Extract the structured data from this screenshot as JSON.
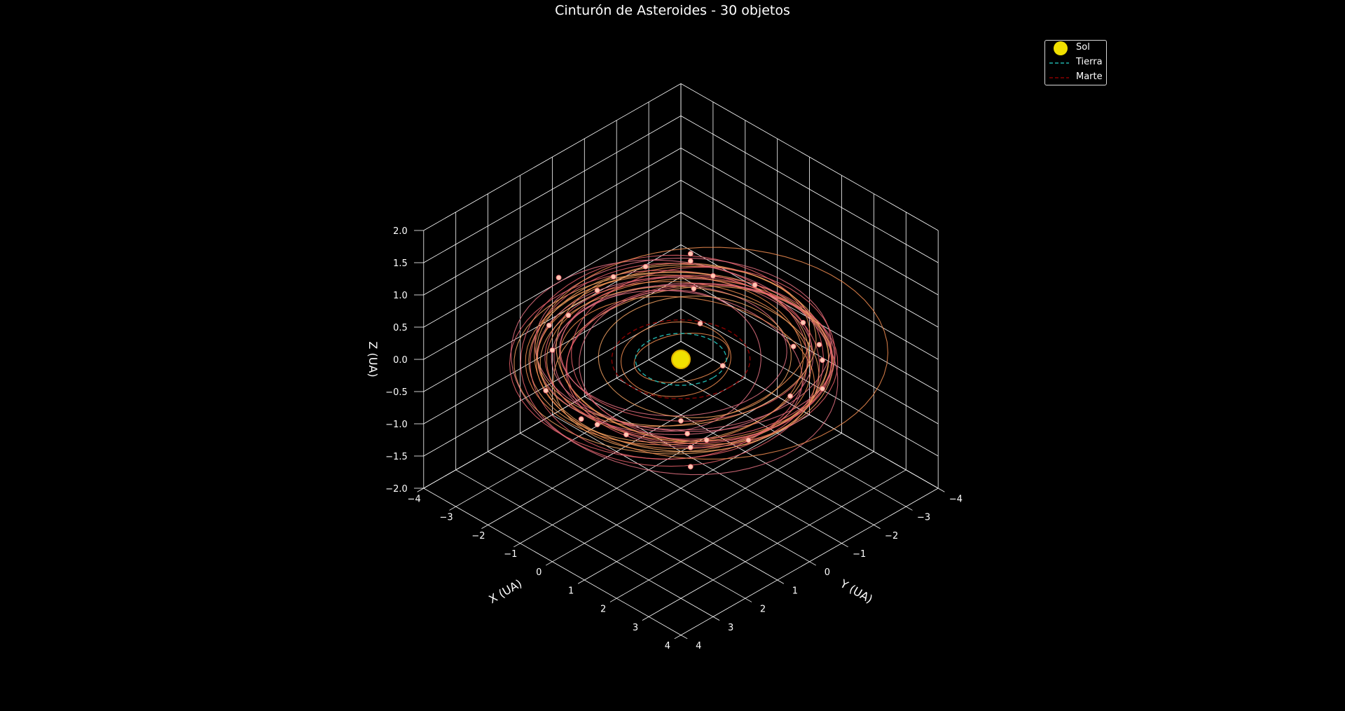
{
  "chart_data": {
    "type": "scatter",
    "title": "Cinturón de Asteroides - 30 objetos",
    "xlabel": "X (UA)",
    "ylabel": "Y (UA)",
    "zlabel": "Z (UA)",
    "xlim": [
      -4,
      4
    ],
    "ylim": [
      -4,
      4
    ],
    "zlim": [
      -2,
      2
    ],
    "x_ticks": [
      "−4",
      "−3",
      "−2",
      "−1",
      "0",
      "1",
      "2",
      "3",
      "4"
    ],
    "y_ticks": [
      "−4",
      "−3",
      "−2",
      "−1",
      "0",
      "1",
      "2",
      "3",
      "4"
    ],
    "z_ticks": [
      "−2.0",
      "−1.5",
      "−1.0",
      "−0.5",
      "0.0",
      "0.5",
      "1.0",
      "1.5",
      "2.0"
    ],
    "grid": true,
    "legend_position": "top-right",
    "legend": [
      {
        "name": "Sol",
        "color": "#f0e000",
        "kind": "marker"
      },
      {
        "name": "Tierra",
        "color": "#20b2aa",
        "kind": "dashed"
      },
      {
        "name": "Marte",
        "color": "#8b0000",
        "kind": "dashed"
      }
    ],
    "sun": {
      "x": 0,
      "y": 0,
      "z": 0
    },
    "earth_orbit": {
      "radius": 1.0
    },
    "mars_orbit": {
      "radius": 1.52
    },
    "asteroids": [
      {
        "x": -2.2,
        "y": -2.5,
        "z": 0.3
      },
      {
        "x": -3.0,
        "y": -0.4,
        "z": 0.1
      },
      {
        "x": -2.6,
        "y": 0.9,
        "z": 0.2
      },
      {
        "x": -1.6,
        "y": 2.6,
        "z": -0.2
      },
      {
        "x": -0.1,
        "y": 3.0,
        "z": -0.1
      },
      {
        "x": 1.2,
        "y": 2.9,
        "z": 0.0
      },
      {
        "x": 2.3,
        "y": 2.1,
        "z": 0.1
      },
      {
        "x": 2.9,
        "y": 0.8,
        "z": -0.2
      },
      {
        "x": 2.7,
        "y": -0.7,
        "z": 0.0
      },
      {
        "x": 2.1,
        "y": -2.2,
        "z": 0.2
      },
      {
        "x": 0.9,
        "y": -2.9,
        "z": 0.0
      },
      {
        "x": -0.7,
        "y": -3.0,
        "z": 0.1
      },
      {
        "x": -2.9,
        "y": -1.8,
        "z": 0.1
      },
      {
        "x": -1.9,
        "y": 2.1,
        "z": 0.2
      },
      {
        "x": 3.0,
        "y": -1.4,
        "z": 0.0
      },
      {
        "x": -3.3,
        "y": -1.2,
        "z": 0.0
      },
      {
        "x": -2.0,
        "y": -2.3,
        "z": 0.3
      },
      {
        "x": -1.6,
        "y": -2.6,
        "z": 0.1
      },
      {
        "x": 1.4,
        "y": -2.1,
        "z": 0.0
      },
      {
        "x": 2.4,
        "y": -2.0,
        "z": 0.1
      },
      {
        "x": 2.6,
        "y": 1.8,
        "z": 0.0
      },
      {
        "x": -0.5,
        "y": -1.1,
        "z": 0.1
      },
      {
        "x": -1.2,
        "y": -1.6,
        "z": 0.3
      },
      {
        "x": 1.5,
        "y": 1.5,
        "z": -0.1
      },
      {
        "x": 2.2,
        "y": 1.9,
        "z": -0.2
      },
      {
        "x": 1.0,
        "y": -0.3,
        "z": 0.1
      },
      {
        "x": -3.6,
        "y": 0.2,
        "z": 0.3
      },
      {
        "x": -2.8,
        "y": 1.3,
        "z": 0.1
      },
      {
        "x": 0.3,
        "y": 2.9,
        "z": -0.1
      },
      {
        "x": 2.9,
        "y": 2.6,
        "z": -0.1
      }
    ],
    "orbit_colors": [
      "#e8606a",
      "#f08c50",
      "#e07080",
      "#f0a060"
    ],
    "point_color": "#ffc8b4",
    "grid_color": "#ffffff",
    "background": "#000000"
  }
}
